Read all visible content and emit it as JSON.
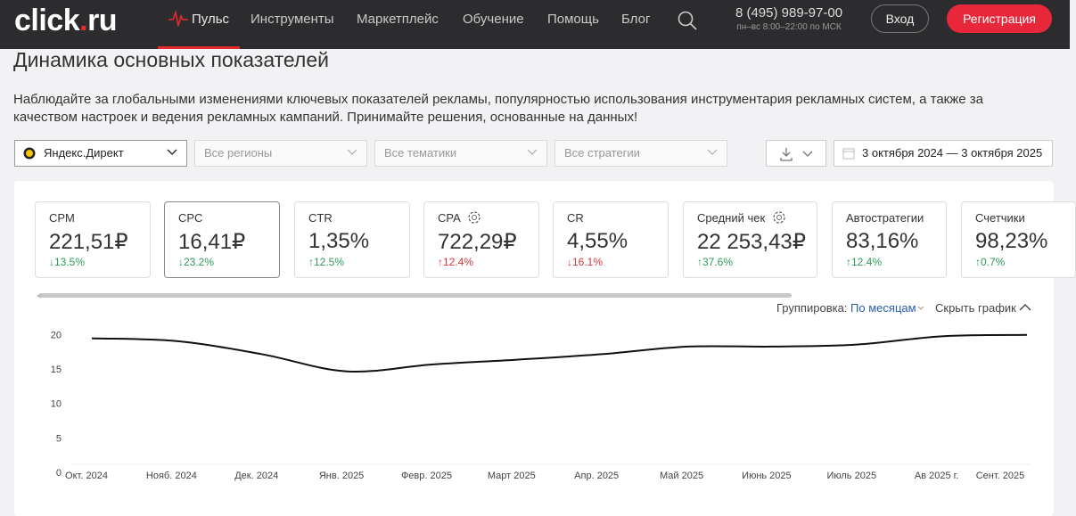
{
  "header": {
    "logo": {
      "left": "click",
      "dot": ".",
      "right": "ru"
    },
    "nav": [
      "Пульс",
      "Инструменты",
      "Маркетплейс",
      "Обучение",
      "Помощь",
      "Блог"
    ],
    "phone": "8 (495) 989-97-00",
    "hours": "пн–вс 8:00–22:00 по МСК",
    "login": "Вход",
    "register": "Регистрация"
  },
  "title": "Динамика основных показателей",
  "description": "Наблюдайте за глобальными изменениями ключевых показателей рекламы, популярностью использования инструментария рекламных систем, а также за качеством настроек и ведения рекламных кампаний. Принимайте решения, основанные на данных!",
  "filters": [
    "Яндекс.Директ",
    "Все регионы",
    "Все тематики",
    "Все стратегии"
  ],
  "date_range": "3 октября 2024 — 3 октября 2025",
  "metrics": [
    {
      "name": "CPM",
      "value": "221,51₽",
      "change": "↓13.5%",
      "color": "#2e9b5a"
    },
    {
      "name": "CPC",
      "value": "16,41₽",
      "change": "↓23.2%",
      "color": "#2e9b5a"
    },
    {
      "name": "CTR",
      "value": "1,35%",
      "change": "↑12.5%",
      "color": "#2e9b5a"
    },
    {
      "name": "CPA",
      "value": "722,29₽",
      "change": "↑12.4%",
      "color": "#d0393b"
    },
    {
      "name": "CR",
      "value": "4,55%",
      "change": "↓16.1%",
      "color": "#d0393b"
    },
    {
      "name": "Средний чек",
      "value": "22 253,43₽",
      "change": "↑37.6%",
      "color": "#2e9b5a"
    },
    {
      "name": "Автостратегии",
      "value": "83,16%",
      "change": "↑12.4%",
      "color": "#2e9b5a"
    },
    {
      "name": "Счетчики",
      "value": "98,23%",
      "change": "↑0.7%",
      "color": "#2e9b5a"
    }
  ],
  "grouping_label": "Группировка:",
  "grouping_value": "По месяцам",
  "hide_chart": "Скрыть график",
  "chart_data": {
    "type": "line",
    "categories": [
      "Окт. 2024",
      "Нояб. 2024",
      "Дек. 2024",
      "Янв. 2025",
      "Февр. 2025",
      "Март 2025",
      "Апр. 2025",
      "Май 2025",
      "Июнь 2025",
      "Июль 2025",
      "Ав 2025 г.",
      "Сент. 2025"
    ],
    "values": [
      19.6,
      19.2,
      17.3,
      14.8,
      15.8,
      16.5,
      17.3,
      18.4,
      18.4,
      18.7,
      19.9,
      20.1
    ],
    "color": "#111111",
    "ylim": [
      0,
      21.5
    ],
    "yticks": [
      0,
      5,
      10,
      15,
      20
    ]
  }
}
